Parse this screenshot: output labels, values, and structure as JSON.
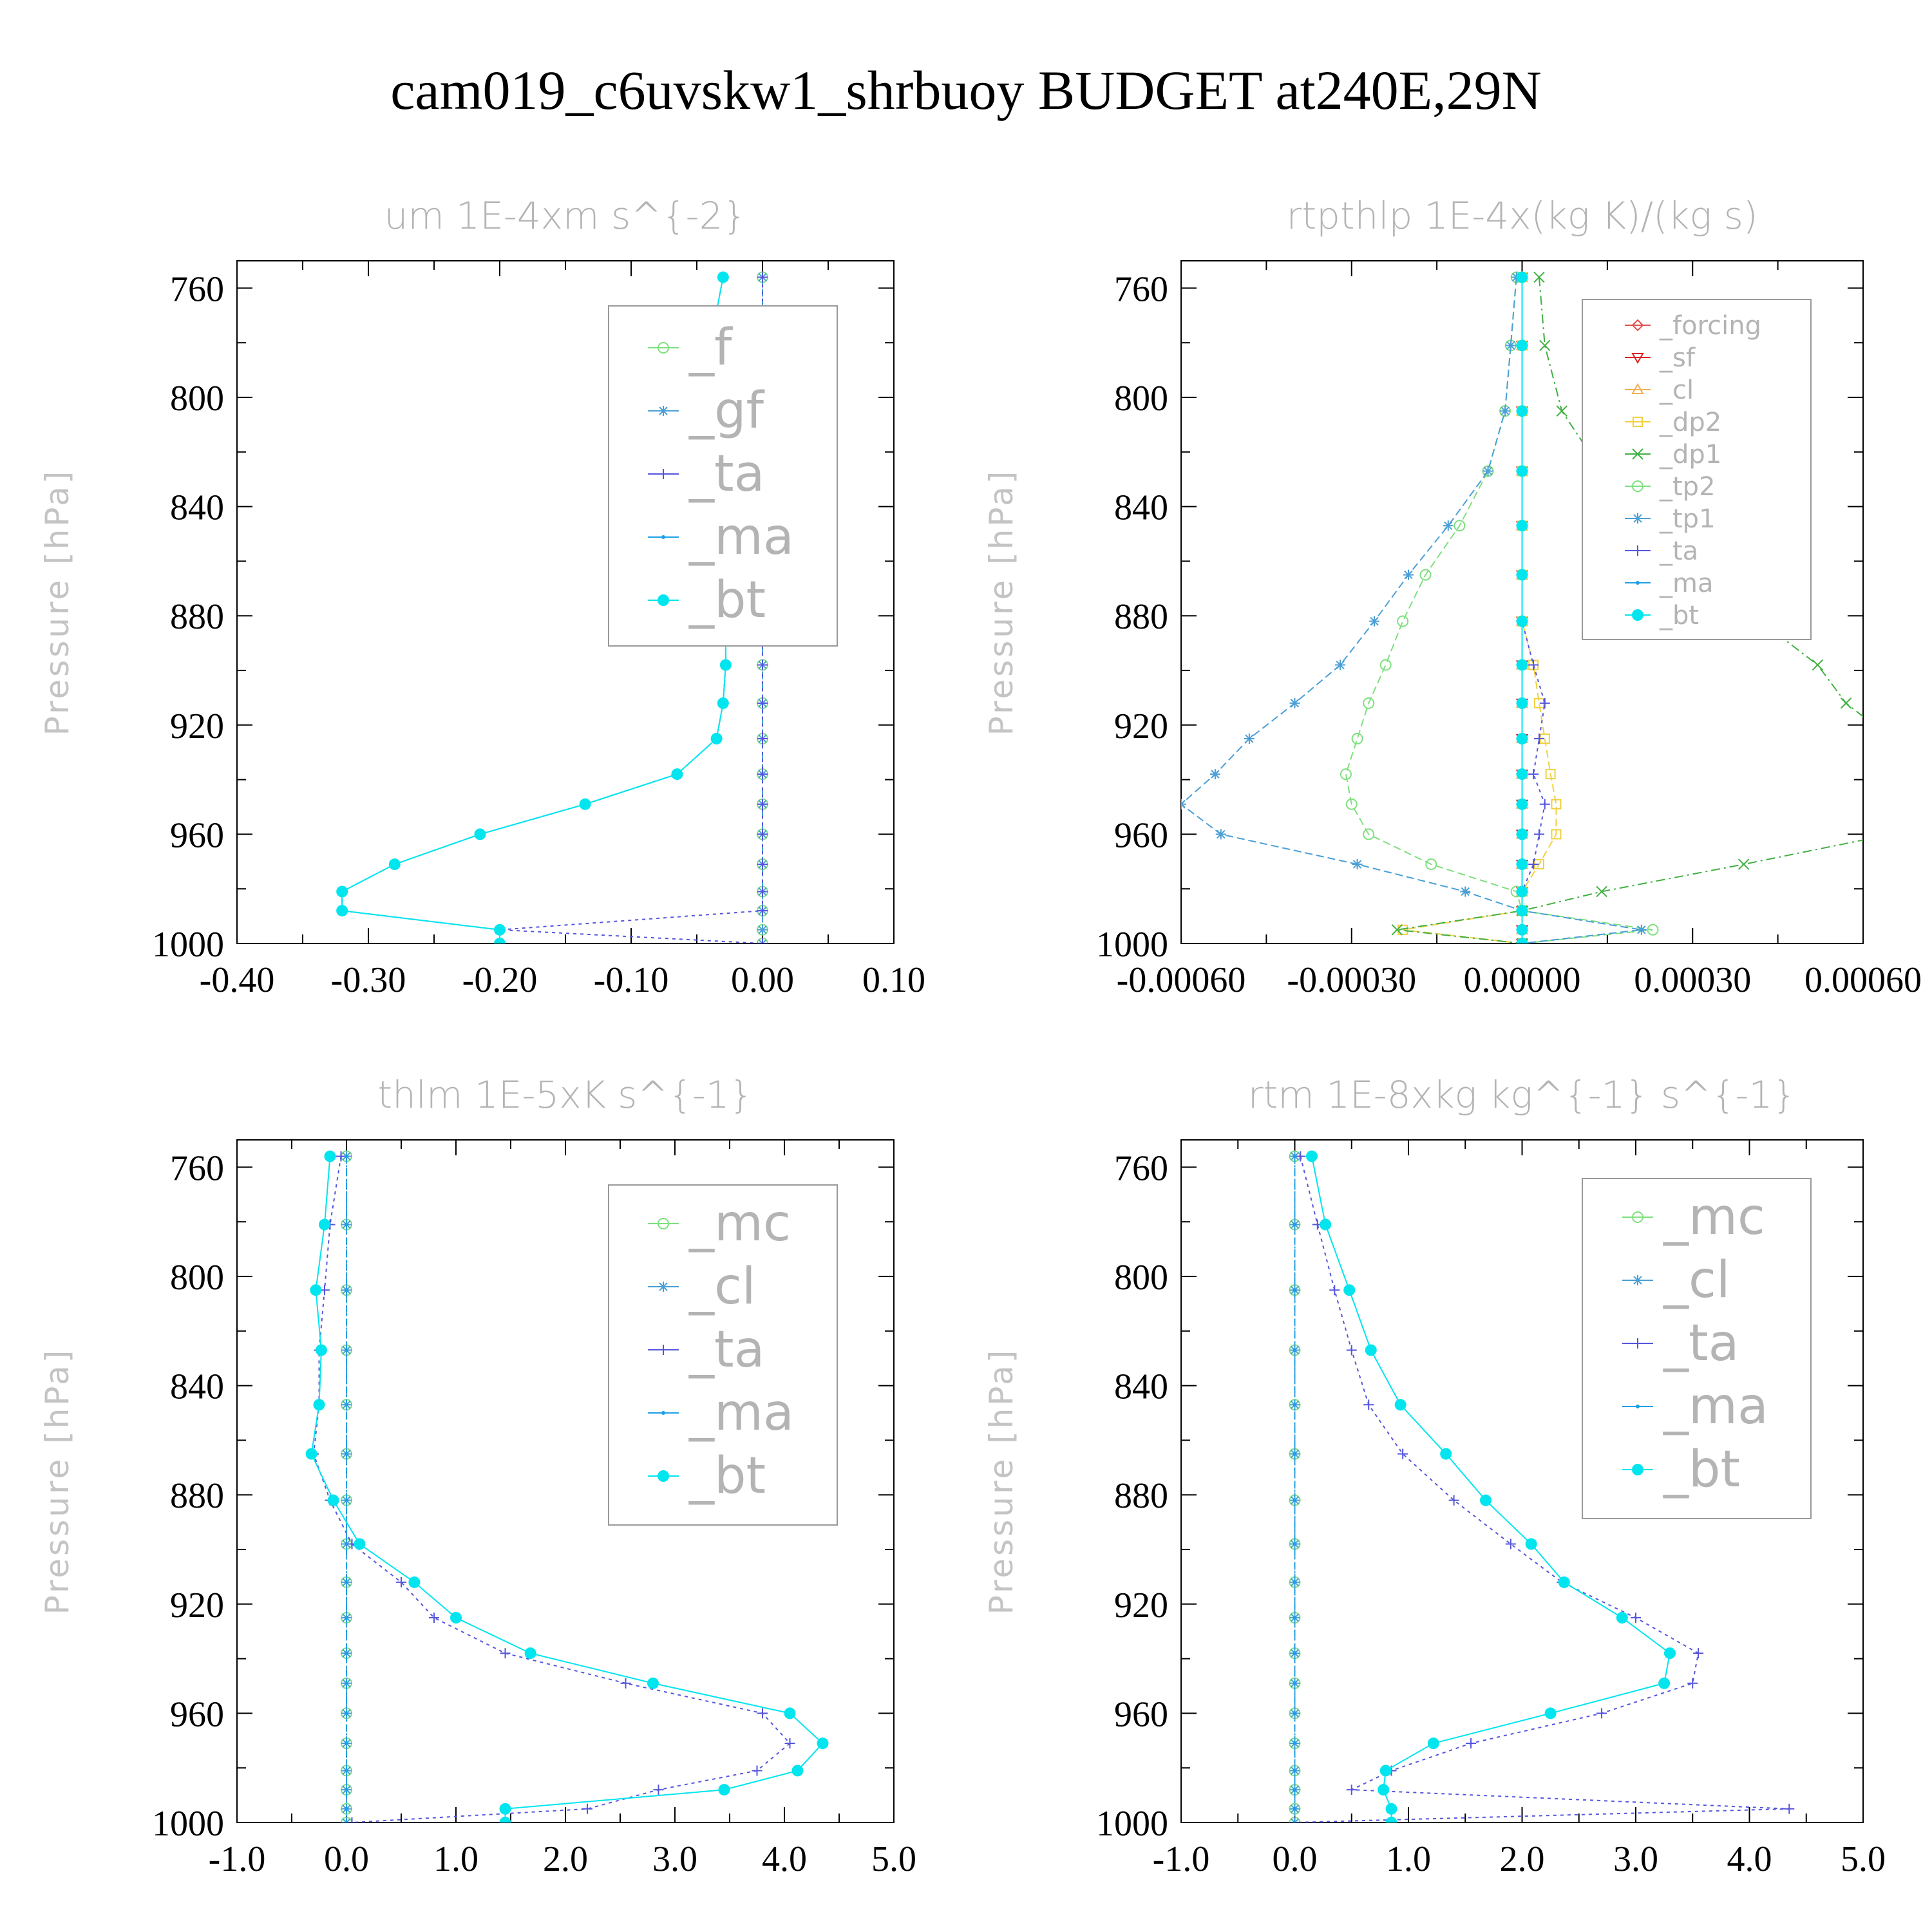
{
  "title": "cam019_c6uvskw1_shrbuoy  BUDGET at240E,29N",
  "colors": {
    "f": "#7ee07e",
    "gf": "#4a9fd6",
    "ta": "#5555dd",
    "ma": "#1ea0e6",
    "bt": "#00e5ee",
    "forcing": "#e05050",
    "sf": "#e02020",
    "cl_orange": "#f0b050",
    "dp2": "#f0d040",
    "dp1": "#40b040",
    "tp2": "#7ee07e",
    "tp1": "#4a9fd6",
    "mc": "#7ee07e",
    "cl": "#4a9fd6"
  },
  "chart_data": [
    {
      "type": "line",
      "title": "um  1E-4xm s^{-2}",
      "ylabel": "Pressure [hPa]",
      "xlim": [
        -0.4,
        0.1
      ],
      "ylim": [
        750,
        1000
      ],
      "xticks": [
        "-0.40",
        "-0.30",
        "-0.20",
        "-0.10",
        "0.00",
        "0.10"
      ],
      "yticks": [
        "760",
        "800",
        "840",
        "880",
        "920",
        "960",
        "1000"
      ],
      "levels": [
        756,
        781,
        805,
        827,
        847,
        865,
        882,
        898,
        912,
        925,
        938,
        949,
        960,
        971,
        981,
        988,
        995,
        1000
      ],
      "legend": [
        "_f",
        "_gf",
        "_ta",
        "_ma",
        "_bt"
      ],
      "series": [
        {
          "name": "_f",
          "key": "f",
          "style": "circle",
          "values": [
            0,
            0,
            0,
            0,
            0,
            0,
            0,
            0,
            0,
            0,
            0,
            0,
            0,
            0,
            0,
            0,
            0,
            0
          ]
        },
        {
          "name": "_gf",
          "key": "gf",
          "style": "star",
          "values": [
            0,
            0,
            0,
            0,
            0,
            0,
            0,
            0,
            0,
            0,
            0,
            0,
            0,
            0,
            0,
            0,
            0,
            0
          ]
        },
        {
          "name": "_ta",
          "key": "ta",
          "style": "plus",
          "values": [
            0,
            0,
            0,
            0,
            0,
            0,
            0,
            0,
            0,
            0,
            0,
            0,
            0,
            0,
            0,
            0,
            -0.2,
            0
          ]
        },
        {
          "name": "_ma",
          "key": "ma",
          "style": "dot",
          "values": [
            -0.03,
            -0.04,
            -0.045,
            -0.043,
            -0.037,
            -0.031,
            -0.028,
            -0.028,
            -0.03,
            -0.035,
            -0.065,
            -0.135,
            -0.215,
            -0.28,
            -0.32,
            -0.32,
            -0.2,
            -0.2
          ]
        },
        {
          "name": "_bt",
          "key": "bt",
          "style": "bigdot",
          "values": [
            -0.03,
            -0.04,
            -0.045,
            -0.043,
            -0.037,
            -0.031,
            -0.028,
            -0.028,
            -0.03,
            -0.035,
            -0.065,
            -0.135,
            -0.215,
            -0.28,
            -0.32,
            -0.32,
            -0.2,
            -0.2
          ]
        }
      ]
    },
    {
      "type": "line",
      "title": "rtpthlp  1E-4x(kg K)/(kg s)",
      "ylabel": "Pressure [hPa]",
      "xlim": [
        -0.0006,
        0.0006
      ],
      "ylim": [
        750,
        1000
      ],
      "xticks": [
        "-0.00060",
        "-0.00030",
        "0.00000",
        "0.00030",
        "0.00060"
      ],
      "yticks": [
        "760",
        "800",
        "840",
        "880",
        "920",
        "960",
        "1000"
      ],
      "levels": [
        756,
        781,
        805,
        827,
        847,
        865,
        882,
        898,
        912,
        925,
        938,
        949,
        960,
        971,
        981,
        988,
        995,
        1000
      ],
      "legend": [
        "_forcing",
        "_sf",
        "_cl",
        "_dp2",
        "_dp1",
        "_tp2",
        "_tp1",
        "_ta",
        "_ma",
        "_bt"
      ],
      "series": [
        {
          "name": "_forcing",
          "key": "forcing",
          "style": "diamond",
          "values": [
            0,
            0,
            0,
            0,
            0,
            0,
            0,
            0,
            0,
            0,
            0,
            0,
            0,
            0,
            0,
            0,
            0,
            0
          ]
        },
        {
          "name": "_sf",
          "key": "sf",
          "style": "tridown",
          "values": [
            0,
            0,
            0,
            0,
            0,
            0,
            0,
            0,
            0,
            0,
            0,
            0,
            0,
            0,
            0,
            0,
            0,
            0
          ]
        },
        {
          "name": "_cl",
          "key": "cl_orange",
          "style": "triup",
          "values": [
            0,
            0,
            0,
            0,
            0,
            0,
            0,
            0,
            0,
            0,
            0,
            0,
            0,
            0,
            0,
            0,
            0,
            0
          ]
        },
        {
          "name": "_dp2",
          "key": "dp2",
          "style": "square",
          "values": [
            0,
            0,
            0,
            0,
            0,
            0,
            0,
            2e-05,
            3e-05,
            4e-05,
            5e-05,
            6e-05,
            6e-05,
            3e-05,
            0,
            0,
            -0.00021,
            0
          ]
        },
        {
          "name": "_dp1",
          "key": "dp1",
          "style": "cross",
          "values": [
            3e-05,
            4e-05,
            7e-05,
            0.00014,
            0.00022,
            0.00032,
            0.00042,
            0.00052,
            0.00057,
            0.00065,
            0.00073,
            0.00075,
            0.00065,
            0.00039,
            0.00014,
            0,
            -0.00022,
            0
          ]
        },
        {
          "name": "_tp2",
          "key": "tp2",
          "style": "circle",
          "values": [
            -1e-05,
            -2e-05,
            -3e-05,
            -6e-05,
            -0.00011,
            -0.00017,
            -0.00021,
            -0.00024,
            -0.00027,
            -0.00029,
            -0.00031,
            -0.0003,
            -0.00027,
            -0.00016,
            -1e-05,
            0,
            0.00023,
            0
          ]
        },
        {
          "name": "_tp1",
          "key": "tp1",
          "style": "star",
          "values": [
            -1e-05,
            -2e-05,
            -3e-05,
            -6e-05,
            -0.00013,
            -0.0002,
            -0.00026,
            -0.00032,
            -0.0004,
            -0.00048,
            -0.00054,
            -0.0006,
            -0.00053,
            -0.00029,
            -0.0001,
            0,
            0.00021,
            0
          ]
        },
        {
          "name": "_ta",
          "key": "ta",
          "style": "plus",
          "values": [
            0,
            0,
            0,
            0,
            0,
            0,
            0,
            2e-05,
            4e-05,
            3e-05,
            2e-05,
            4e-05,
            3e-05,
            2e-05,
            0,
            0,
            0,
            0
          ]
        },
        {
          "name": "_ma",
          "key": "ma",
          "style": "dot",
          "values": [
            0,
            0,
            0,
            0,
            0,
            0,
            0,
            0,
            0,
            0,
            0,
            0,
            0,
            0,
            0,
            0,
            0,
            0
          ]
        },
        {
          "name": "_bt",
          "key": "bt",
          "style": "bigdot",
          "values": [
            0,
            0,
            0,
            0,
            0,
            0,
            0,
            0,
            0,
            0,
            0,
            0,
            0,
            0,
            0,
            0,
            0,
            0
          ]
        }
      ]
    },
    {
      "type": "line",
      "title": "thlm  1E-5xK s^{-1}",
      "ylabel": "Pressure [hPa]",
      "xlim": [
        -1.0,
        5.0
      ],
      "ylim": [
        750,
        1000
      ],
      "xticks": [
        "-1.0",
        "0.0",
        "1.0",
        "2.0",
        "3.0",
        "4.0",
        "5.0"
      ],
      "yticks": [
        "760",
        "800",
        "840",
        "880",
        "920",
        "960",
        "1000"
      ],
      "levels": [
        756,
        781,
        805,
        827,
        847,
        865,
        882,
        898,
        912,
        925,
        938,
        949,
        960,
        971,
        981,
        988,
        995,
        1000
      ],
      "legend": [
        "_mc",
        "_cl",
        "_ta",
        "_ma",
        "_bt"
      ],
      "series": [
        {
          "name": "_mc",
          "key": "mc",
          "style": "circle",
          "values": [
            0,
            0,
            0,
            0,
            0,
            0,
            0,
            0,
            0,
            0,
            0,
            0,
            0,
            0,
            0,
            0,
            0,
            0
          ]
        },
        {
          "name": "_cl",
          "key": "cl",
          "style": "star",
          "values": [
            0,
            0,
            0,
            0,
            0,
            0,
            0,
            0,
            0,
            0,
            0,
            0,
            0,
            0,
            0,
            0,
            0,
            0
          ]
        },
        {
          "name": "_ta",
          "key": "ta",
          "style": "plus",
          "values": [
            -0.05,
            -0.15,
            -0.2,
            -0.25,
            -0.25,
            -0.3,
            -0.15,
            0.05,
            0.5,
            0.8,
            1.45,
            2.55,
            3.8,
            4.05,
            3.75,
            2.85,
            2.2,
            0.05
          ]
        },
        {
          "name": "_ma",
          "key": "ma",
          "style": "dot",
          "values": [
            0,
            0,
            0,
            0,
            0,
            0,
            0,
            0,
            0,
            0,
            0,
            0,
            0,
            0,
            0,
            0,
            0,
            0
          ]
        },
        {
          "name": "_bt",
          "key": "bt",
          "style": "bigdot",
          "values": [
            -0.15,
            -0.2,
            -0.28,
            -0.23,
            -0.25,
            -0.32,
            -0.12,
            0.12,
            0.62,
            1.0,
            1.68,
            2.8,
            4.05,
            4.35,
            4.12,
            3.45,
            1.45,
            1.45
          ]
        }
      ]
    },
    {
      "type": "line",
      "title": "rtm  1E-8xkg kg^{-1} s^{-1}",
      "ylabel": "Pressure [hPa]",
      "xlim": [
        -1.0,
        5.0
      ],
      "ylim": [
        750,
        1000
      ],
      "xticks": [
        "-1.0",
        "0.0",
        "1.0",
        "2.0",
        "3.0",
        "4.0",
        "5.0"
      ],
      "yticks": [
        "760",
        "800",
        "840",
        "880",
        "920",
        "960",
        "1000"
      ],
      "levels": [
        756,
        781,
        805,
        827,
        847,
        865,
        882,
        898,
        912,
        925,
        938,
        949,
        960,
        971,
        981,
        988,
        995,
        1000
      ],
      "legend": [
        "_mc",
        "_cl",
        "_ta",
        "_ma",
        "_bt"
      ],
      "series": [
        {
          "name": "_mc",
          "key": "mc",
          "style": "circle",
          "values": [
            0,
            0,
            0,
            0,
            0,
            0,
            0,
            0,
            0,
            0,
            0,
            0,
            0,
            0,
            0,
            0,
            0,
            0
          ]
        },
        {
          "name": "_cl",
          "key": "cl",
          "style": "star",
          "values": [
            0,
            0,
            0,
            0,
            0,
            0,
            0,
            0,
            0,
            0,
            0,
            0,
            0,
            0,
            0,
            0,
            0,
            0
          ]
        },
        {
          "name": "_ta",
          "key": "ta",
          "style": "plus",
          "values": [
            0.05,
            0.2,
            0.35,
            0.5,
            0.65,
            0.95,
            1.4,
            1.9,
            2.35,
            3.0,
            3.55,
            3.5,
            2.7,
            1.55,
            0.85,
            0.5,
            4.35,
            0
          ]
        },
        {
          "name": "_ma",
          "key": "ma",
          "style": "dot",
          "values": [
            0,
            0,
            0,
            0,
            0,
            0,
            0,
            0,
            0,
            0,
            0,
            0,
            0,
            0,
            0,
            0,
            0,
            0
          ]
        },
        {
          "name": "_bt",
          "key": "bt",
          "style": "bigdot",
          "values": [
            0.15,
            0.27,
            0.48,
            0.67,
            0.93,
            1.33,
            1.68,
            2.08,
            2.37,
            2.88,
            3.3,
            3.25,
            2.25,
            1.22,
            0.8,
            0.78,
            0.85,
            0.85
          ]
        }
      ]
    }
  ]
}
